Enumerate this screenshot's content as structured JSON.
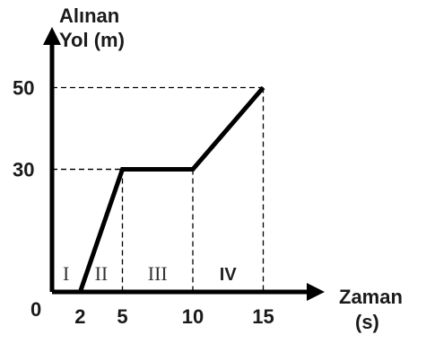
{
  "chart_data": {
    "type": "line",
    "title": "",
    "xlabel": [
      "Zaman",
      "(s)"
    ],
    "ylabel": [
      "Alınan",
      "Yol (m)"
    ],
    "origin_label": "0",
    "x_ticks": [
      "2",
      "5",
      "10",
      "15"
    ],
    "y_ticks": [
      "30",
      "50"
    ],
    "xlim": [
      0,
      20
    ],
    "ylim": [
      0,
      85
    ],
    "series": [
      {
        "x": [
          0,
          2,
          5,
          10,
          15
        ],
        "y": [
          0,
          0,
          30,
          30,
          50
        ]
      }
    ],
    "regions": [
      {
        "label": "I",
        "from": 0,
        "to": 2
      },
      {
        "label": "II",
        "from": 2,
        "to": 5
      },
      {
        "label": "III",
        "from": 5,
        "to": 10
      },
      {
        "label": "IV",
        "from": 10,
        "to": 15
      }
    ],
    "grid": false,
    "colors": {
      "line": "#000000",
      "guides": "#000000",
      "text": "#1a1a1a"
    }
  }
}
